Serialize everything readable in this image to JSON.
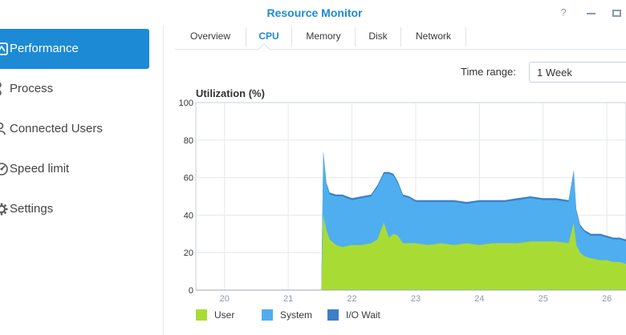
{
  "window": {
    "title": "Resource Monitor",
    "help_glyph": "?"
  },
  "sidebar": {
    "items": [
      {
        "label": "Performance",
        "icon": "gauge-icon",
        "active": true
      },
      {
        "label": "Process",
        "icon": "process-icon",
        "active": false
      },
      {
        "label": "Connected Users",
        "icon": "users-icon",
        "active": false
      },
      {
        "label": "Speed limit",
        "icon": "speed-icon",
        "active": false
      },
      {
        "label": "Settings",
        "icon": "gear-icon",
        "active": false
      }
    ]
  },
  "tabs": [
    {
      "label": "Overview",
      "active": false
    },
    {
      "label": "CPU",
      "active": true
    },
    {
      "label": "Memory",
      "active": false
    },
    {
      "label": "Disk",
      "active": false
    },
    {
      "label": "Network",
      "active": false
    }
  ],
  "time_range": {
    "label": "Time range:",
    "value": "1 Week"
  },
  "colors": {
    "accent": "#1d8ad6",
    "user": "#a8dc35",
    "system": "#4faeef",
    "iowait": "#3d7fc8"
  },
  "chart_data": {
    "type": "area",
    "title": "Utilization (%)",
    "ylim": [
      0,
      100
    ],
    "yticks": [
      "0",
      "20",
      "40",
      "60",
      "80",
      "100"
    ],
    "xticks": [
      "20",
      "21",
      "22",
      "23",
      "24",
      "25",
      "26"
    ],
    "xlim": [
      19.55,
      26.3
    ],
    "grid": true,
    "stacked": true,
    "legend_position": "bottom-left",
    "x": [
      19.55,
      21.5,
      21.52,
      21.55,
      21.6,
      21.65,
      21.75,
      21.85,
      22.0,
      22.15,
      22.3,
      22.4,
      22.5,
      22.58,
      22.65,
      22.72,
      22.8,
      22.9,
      23.0,
      23.2,
      23.4,
      23.6,
      23.8,
      24.0,
      24.2,
      24.4,
      24.6,
      24.8,
      25.0,
      25.2,
      25.4,
      25.48,
      25.52,
      25.58,
      25.65,
      25.75,
      25.9,
      26.0,
      26.1,
      26.2,
      26.3
    ],
    "series": [
      {
        "name": "User",
        "values": [
          0,
          0,
          0,
          40,
          32,
          27,
          24,
          23,
          24,
          24,
          25,
          27,
          36,
          28,
          30,
          29,
          25,
          25,
          25,
          24,
          25,
          24,
          25,
          24,
          25,
          25,
          25,
          26,
          26,
          26,
          25,
          36,
          24,
          20,
          18,
          17,
          16,
          16,
          15,
          15,
          14
        ]
      },
      {
        "name": "System",
        "values": [
          0,
          0,
          0,
          33,
          24,
          24,
          26,
          27,
          24,
          25,
          25,
          28,
          26,
          34,
          31,
          28,
          25,
          24,
          22,
          23,
          22,
          23,
          21,
          23,
          22,
          22,
          23,
          23,
          22,
          22,
          22,
          27,
          18,
          14,
          13,
          12,
          13,
          12,
          12,
          12,
          12
        ]
      },
      {
        "name": "I/O Wait",
        "values": [
          0,
          0,
          0,
          1,
          1,
          1,
          1,
          1,
          1,
          1,
          1,
          1,
          1,
          1,
          1,
          1,
          1,
          1,
          1,
          1,
          1,
          1,
          1,
          1,
          1,
          1,
          1,
          1,
          1,
          1,
          1,
          1,
          1,
          1,
          1,
          1,
          1,
          1,
          1,
          1,
          1
        ]
      }
    ]
  }
}
